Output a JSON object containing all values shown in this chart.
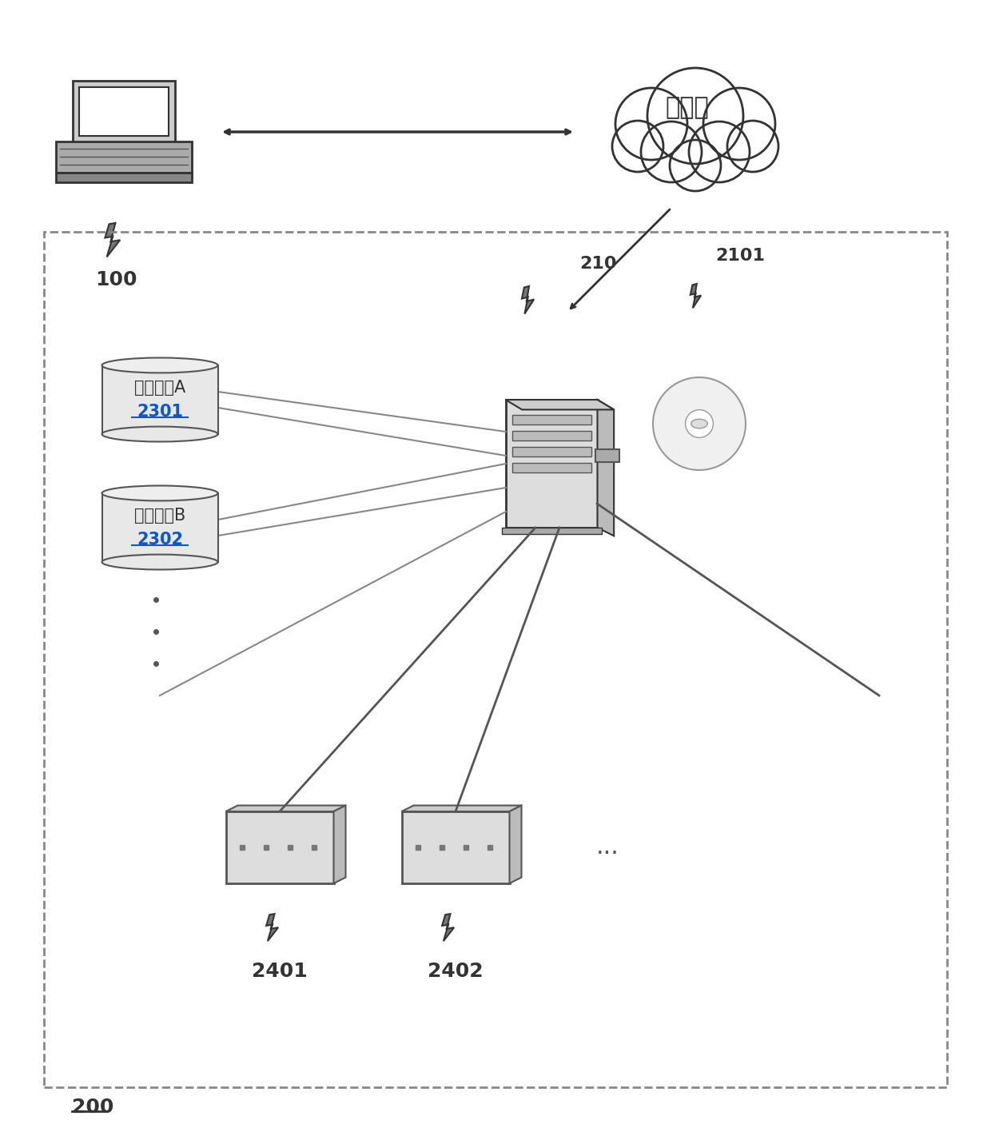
{
  "bg_color": "#ffffff",
  "border_color": "#999999",
  "text_color": "#333333",
  "cloud_text": "因特网",
  "label_100": "100",
  "label_200": "200",
  "label_210": "210",
  "label_2101": "2101",
  "label_2301": "2301",
  "label_2302": "2302",
  "label_2401": "2401",
  "label_2402": "2402",
  "db_label_a": "翻译引擎A",
  "db_label_b": "翻译引擎B"
}
